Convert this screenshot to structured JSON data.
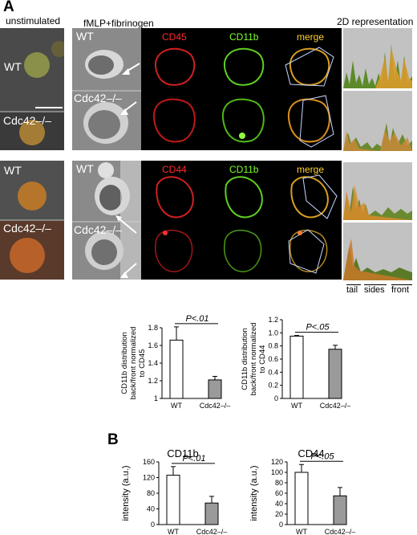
{
  "figure": {
    "panel_a_letter": "A",
    "panel_b_letter": "B",
    "header_unstimulated": "unstimulated",
    "header_fmlp": "fMLP+fibrinogen",
    "header_2d": "2D representation",
    "row_labels": {
      "wt": "WT",
      "ko": "Cdc42–/–"
    },
    "channel_labels": {
      "cd45": "CD45",
      "cd44": "CD44",
      "cd11b": "CD11b",
      "merge": "merge"
    },
    "profile_axis_labels": [
      "tail",
      "sides",
      "front"
    ],
    "colors": {
      "red": "#ff2a2a",
      "green": "#7dff2a",
      "merge": "#ffd22a"
    }
  },
  "chart_data": [
    {
      "type": "bar",
      "categories": [
        "WT",
        "Cdc42–/–"
      ],
      "values": [
        1.66,
        1.21
      ],
      "errors": [
        0.15,
        0.04
      ],
      "ylabel": "CD11b distribution back/front normalized to CD45",
      "ylabel_lines": [
        "CD11b distribution",
        "back/front normalized",
        "to CD45"
      ],
      "ylim": [
        1.0,
        1.8
      ],
      "yticks": [
        "1",
        "1.2",
        "1.4",
        "1.6",
        "1.8"
      ],
      "annotation": "P<.01"
    },
    {
      "type": "bar",
      "categories": [
        "WT",
        "Cdc42–/–"
      ],
      "values": [
        0.95,
        0.75
      ],
      "errors": [
        0.01,
        0.06
      ],
      "ylabel": "CD11b distribution back/front normalized to CD44",
      "ylabel_lines": [
        "CD11b distribution",
        "back/front normalized",
        "to CD44"
      ],
      "ylim": [
        0,
        1.2
      ],
      "yticks": [
        "0",
        "0.2",
        "0.4",
        "0.6",
        "0.8",
        "1.0",
        "1.2"
      ],
      "annotation": "P<.05"
    },
    {
      "type": "bar",
      "title": "CD11b",
      "categories": [
        "WT",
        "Cdc42–/–"
      ],
      "values": [
        126,
        55
      ],
      "errors": [
        22,
        17
      ],
      "ylabel": "intensity (a.u.)",
      "ylim": [
        0,
        160
      ],
      "yticks": [
        "0",
        "40",
        "80",
        "120",
        "160"
      ],
      "annotation": "P<.01"
    },
    {
      "type": "bar",
      "title": "CD44",
      "categories": [
        "WT",
        "Cdc42–/–"
      ],
      "values": [
        100,
        55
      ],
      "errors": [
        15,
        16
      ],
      "ylabel": "intensity (a.u.)",
      "ylim": [
        0,
        120
      ],
      "yticks": [
        "0",
        "20",
        "40",
        "60",
        "80",
        "100",
        "120"
      ],
      "annotation": "P<.05"
    }
  ]
}
